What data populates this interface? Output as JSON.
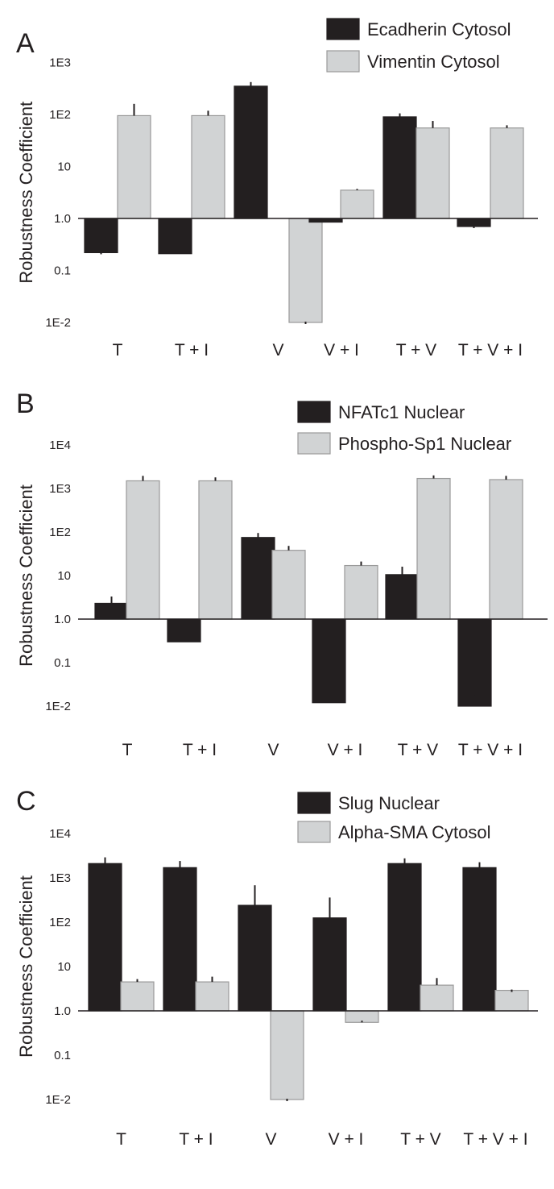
{
  "chart_data": [
    {
      "type": "bar",
      "panel": "A",
      "ylabel": "Robustness Coefficient",
      "yscale": "log",
      "baseline": 1.0,
      "ylim": [
        0.01,
        1000
      ],
      "yticks": [
        {
          "value": 1000,
          "label": "1E3"
        },
        {
          "value": 100,
          "label": "1E2"
        },
        {
          "value": 10,
          "label": "10"
        },
        {
          "value": 1,
          "label": "1.0"
        },
        {
          "value": 0.1,
          "label": "0.1"
        },
        {
          "value": 0.01,
          "label": "1E-2"
        }
      ],
      "categories": [
        "T",
        "T + I",
        "V",
        "V + I",
        "T + V",
        "T + V + I"
      ],
      "legend_position": "top-right",
      "series": [
        {
          "name": "Ecadherin Cytosol",
          "color": "#231f20",
          "values": [
            0.22,
            0.21,
            350,
            0.85,
            90,
            0.7
          ],
          "errors": [
            0.22,
            0.24,
            420,
            0.9,
            105,
            0.7
          ]
        },
        {
          "name": "Vimentin Cytosol",
          "color": "#d1d3d4",
          "values": [
            95,
            95,
            0.01,
            3.5,
            55,
            55
          ],
          "errors": [
            160,
            118,
            0.01,
            3.7,
            75,
            62
          ]
        }
      ]
    },
    {
      "type": "bar",
      "panel": "B",
      "ylabel": "Robustness Coefficient",
      "yscale": "log",
      "baseline": 1.0,
      "ylim": [
        0.01,
        10000
      ],
      "yticks": [
        {
          "value": 10000,
          "label": "1E4"
        },
        {
          "value": 1000,
          "label": "1E3"
        },
        {
          "value": 100,
          "label": "1E2"
        },
        {
          "value": 10,
          "label": "10"
        },
        {
          "value": 1,
          "label": "1.0"
        },
        {
          "value": 0.1,
          "label": "0.1"
        },
        {
          "value": 0.01,
          "label": "1E-2"
        }
      ],
      "categories": [
        "T",
        "T + I",
        "V",
        "V + I",
        "T + V",
        "T + V + I"
      ],
      "legend_position": "top-right",
      "series": [
        {
          "name": "NFATc1 Nuclear",
          "color": "#231f20",
          "values": [
            2.3,
            0.3,
            75,
            0.012,
            10.5,
            0.01
          ],
          "errors": [
            3.3,
            0.35,
            95,
            0.02,
            16,
            0.018
          ]
        },
        {
          "name": "Phospho-Sp1 Nuclear",
          "color": "#d1d3d4",
          "values": [
            1500,
            1500,
            38,
            17,
            1700,
            1600
          ],
          "errors": [
            1950,
            1800,
            48,
            21,
            2000,
            1950
          ]
        }
      ]
    },
    {
      "type": "bar",
      "panel": "C",
      "ylabel": "Robustness Coefficient",
      "yscale": "log",
      "baseline": 1.0,
      "ylim": [
        0.01,
        10000
      ],
      "yticks": [
        {
          "value": 10000,
          "label": "1E4"
        },
        {
          "value": 1000,
          "label": "1E3"
        },
        {
          "value": 100,
          "label": "1E2"
        },
        {
          "value": 10,
          "label": "10"
        },
        {
          "value": 1,
          "label": "1.0"
        },
        {
          "value": 0.1,
          "label": "0.1"
        },
        {
          "value": 0.01,
          "label": "1E-2"
        }
      ],
      "categories": [
        "T",
        "T + I",
        "V",
        "V + I",
        "T + V",
        "T + V + I"
      ],
      "legend_position": "top-right",
      "series": [
        {
          "name": "Slug Nuclear",
          "color": "#231f20",
          "values": [
            2100,
            1700,
            240,
            125,
            2100,
            1700
          ],
          "errors": [
            2900,
            2400,
            680,
            360,
            2750,
            2250
          ]
        },
        {
          "name": "Alpha-SMA Cytosol",
          "color": "#d1d3d4",
          "values": [
            4.5,
            4.5,
            0.01,
            0.55,
            3.8,
            2.9
          ],
          "errors": [
            5.2,
            5.9,
            0.01,
            0.6,
            5.5,
            2.9
          ]
        }
      ]
    }
  ]
}
